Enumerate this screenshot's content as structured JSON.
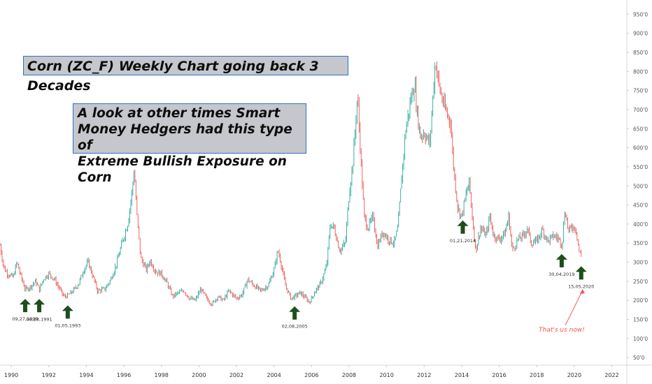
{
  "chart_data": {
    "type": "line",
    "title": "Corn  (ZC_F) Weekly Chart going back 3 Decades",
    "note": "A look at other times Smart\nMoney Hedgers had this type of\nExtreme Bullish Exposure on Corn",
    "xlabel": "",
    "ylabel": "",
    "xlim": [
      1989.4,
      2022.8
    ],
    "ylim": [
      0,
      1000
    ],
    "x_ticks": [
      "1990",
      "1992",
      "1994",
      "1996",
      "1998",
      "2000",
      "2002",
      "2004",
      "2006",
      "2008",
      "2010",
      "2012",
      "2014",
      "2016",
      "2018",
      "2020",
      "2022"
    ],
    "y_ticks": [
      "50'0",
      "100'0",
      "150'0",
      "200'0",
      "250'0",
      "300'0",
      "350'0",
      "400'0",
      "450'0",
      "500'0",
      "550'0",
      "600'0",
      "650'0",
      "700'0",
      "750'0",
      "800'0",
      "850'0",
      "900'0",
      "950'0"
    ],
    "y_tick_values": [
      50,
      100,
      150,
      200,
      250,
      300,
      350,
      400,
      450,
      500,
      550,
      600,
      650,
      700,
      750,
      800,
      850,
      900,
      950
    ],
    "colors": {
      "up": "#26a69a",
      "down": "#ef5350",
      "arrow": "#1e4d1e",
      "box_border": "#2f6fc0",
      "box_fill": "#c5c7cc",
      "annotation": "#ef5350"
    },
    "series": [
      {
        "values": [
          [
            1989.4,
            345
          ],
          [
            1989.6,
            285
          ],
          [
            1989.8,
            270
          ],
          [
            1990.1,
            260
          ],
          [
            1990.3,
            300
          ],
          [
            1990.5,
            265
          ],
          [
            1990.75,
            228
          ],
          [
            1991.0,
            235
          ],
          [
            1991.3,
            250
          ],
          [
            1991.5,
            228
          ],
          [
            1991.7,
            255
          ],
          [
            1992.0,
            270
          ],
          [
            1992.3,
            255
          ],
          [
            1992.6,
            228
          ],
          [
            1992.8,
            210
          ],
          [
            1993.0,
            212
          ],
          [
            1993.3,
            225
          ],
          [
            1993.6,
            245
          ],
          [
            1993.9,
            285
          ],
          [
            1994.1,
            300
          ],
          [
            1994.3,
            270
          ],
          [
            1994.6,
            225
          ],
          [
            1995.0,
            230
          ],
          [
            1995.3,
            255
          ],
          [
            1995.6,
            295
          ],
          [
            1995.9,
            350
          ],
          [
            1996.2,
            400
          ],
          [
            1996.4,
            470
          ],
          [
            1996.55,
            545
          ],
          [
            1996.7,
            420
          ],
          [
            1996.9,
            310
          ],
          [
            1997.2,
            280
          ],
          [
            1997.4,
            305
          ],
          [
            1997.7,
            275
          ],
          [
            1998.0,
            270
          ],
          [
            1998.3,
            245
          ],
          [
            1998.6,
            210
          ],
          [
            1998.9,
            220
          ],
          [
            1999.2,
            225
          ],
          [
            1999.5,
            205
          ],
          [
            1999.8,
            200
          ],
          [
            2000.1,
            230
          ],
          [
            2000.4,
            205
          ],
          [
            2000.7,
            190
          ],
          [
            2001.0,
            210
          ],
          [
            2001.3,
            200
          ],
          [
            2001.6,
            225
          ],
          [
            2002.0,
            205
          ],
          [
            2002.3,
            215
          ],
          [
            2002.6,
            255
          ],
          [
            2002.9,
            240
          ],
          [
            2003.3,
            225
          ],
          [
            2003.7,
            240
          ],
          [
            2004.0,
            280
          ],
          [
            2004.2,
            330
          ],
          [
            2004.3,
            315
          ],
          [
            2004.6,
            240
          ],
          [
            2004.9,
            205
          ],
          [
            2005.1,
            210
          ],
          [
            2005.4,
            220
          ],
          [
            2005.7,
            205
          ],
          [
            2005.9,
            195
          ],
          [
            2006.2,
            225
          ],
          [
            2006.5,
            245
          ],
          [
            2006.8,
            290
          ],
          [
            2007.0,
            400
          ],
          [
            2007.2,
            390
          ],
          [
            2007.5,
            330
          ],
          [
            2007.8,
            350
          ],
          [
            2008.0,
            480
          ],
          [
            2008.2,
            560
          ],
          [
            2008.45,
            740
          ],
          [
            2008.55,
            640
          ],
          [
            2008.8,
            420
          ],
          [
            2009.0,
            390
          ],
          [
            2009.3,
            420
          ],
          [
            2009.5,
            340
          ],
          [
            2009.8,
            380
          ],
          [
            2010.1,
            360
          ],
          [
            2010.4,
            350
          ],
          [
            2010.6,
            390
          ],
          [
            2010.8,
            520
          ],
          [
            2011.0,
            640
          ],
          [
            2011.3,
            730
          ],
          [
            2011.5,
            770
          ],
          [
            2011.6,
            700
          ],
          [
            2011.8,
            630
          ],
          [
            2012.0,
            640
          ],
          [
            2012.3,
            610
          ],
          [
            2012.5,
            760
          ],
          [
            2012.6,
            830
          ],
          [
            2012.8,
            760
          ],
          [
            2013.0,
            720
          ],
          [
            2013.2,
            690
          ],
          [
            2013.4,
            670
          ],
          [
            2013.6,
            530
          ],
          [
            2013.8,
            440
          ],
          [
            2014.0,
            420
          ],
          [
            2014.2,
            470
          ],
          [
            2014.4,
            510
          ],
          [
            2014.6,
            400
          ],
          [
            2014.75,
            330
          ],
          [
            2015.0,
            390
          ],
          [
            2015.3,
            370
          ],
          [
            2015.5,
            420
          ],
          [
            2015.7,
            370
          ],
          [
            2016.0,
            360
          ],
          [
            2016.3,
            375
          ],
          [
            2016.5,
            420
          ],
          [
            2016.7,
            330
          ],
          [
            2017.0,
            360
          ],
          [
            2017.3,
            370
          ],
          [
            2017.5,
            390
          ],
          [
            2017.7,
            350
          ],
          [
            2018.0,
            355
          ],
          [
            2018.3,
            385
          ],
          [
            2018.6,
            355
          ],
          [
            2018.9,
            370
          ],
          [
            2019.2,
            360
          ],
          [
            2019.35,
            345
          ],
          [
            2019.5,
            440
          ],
          [
            2019.7,
            380
          ],
          [
            2019.9,
            395
          ],
          [
            2020.1,
            385
          ],
          [
            2020.25,
            330
          ],
          [
            2020.37,
            315
          ]
        ]
      }
    ],
    "annotations": [
      {
        "text": "09,27,1990",
        "x": 1990.74
      },
      {
        "text": "06,28,1991",
        "x": 1991.49
      },
      {
        "text": "01,05,1993",
        "x": 1993.01
      },
      {
        "text": "02,08,2005",
        "x": 2005.1
      },
      {
        "text": "01,21,2014",
        "x": 2014.06
      },
      {
        "text": "30,04,2019",
        "x": 2019.33
      },
      {
        "text": "15,05,2020",
        "x": 2020.37
      }
    ],
    "callout": "That's us now!"
  }
}
